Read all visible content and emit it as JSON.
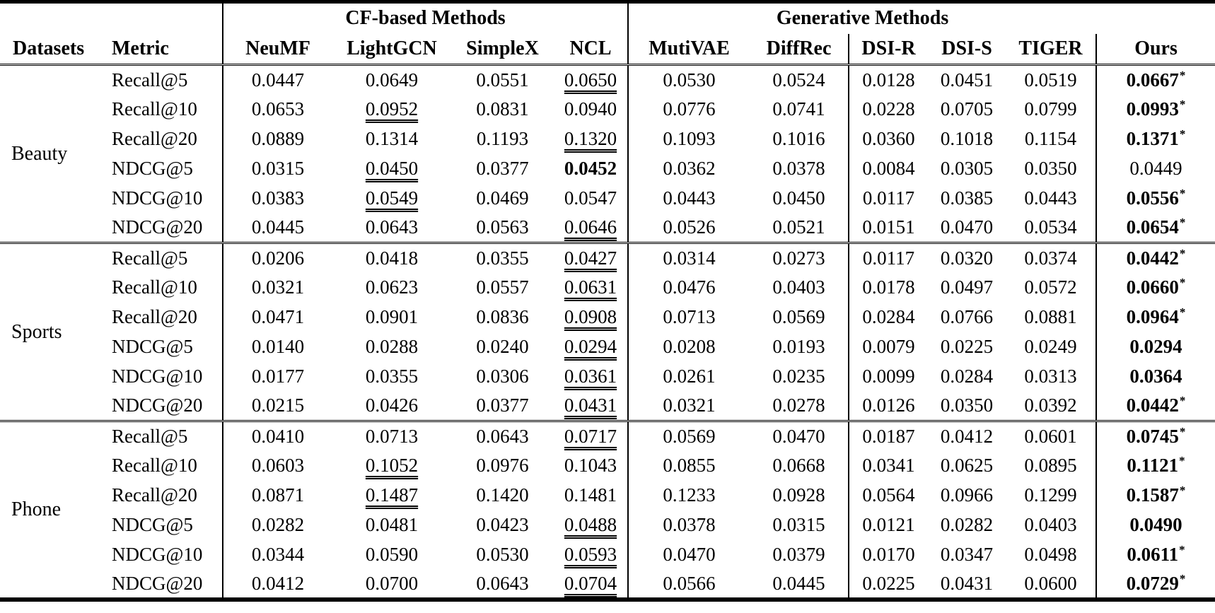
{
  "page": {
    "background": "#ffffff",
    "text_color": "#000000"
  },
  "table": {
    "datasets_label": "Datasets",
    "metric_label": "Metric",
    "groups": [
      "CF-based Methods",
      "Generative Methods"
    ],
    "methods": [
      "NeuMF",
      "LightGCN",
      "SimpleX",
      "NCL",
      "MutiVAE",
      "DiffRec",
      "DSI-R",
      "DSI-S",
      "TIGER",
      "Ours"
    ],
    "significance_marker": "*",
    "sections": [
      {
        "dataset": "Beauty",
        "rows": [
          {
            "metric": "Recall@5",
            "values": [
              "0.0447",
              "0.0649",
              "0.0551",
              "0.0650",
              "0.0530",
              "0.0524",
              "0.0128",
              "0.0451",
              "0.0519",
              "0.0667"
            ],
            "formats": [
              "",
              "",
              "",
              "u",
              "",
              "",
              "",
              "",
              "",
              "bs"
            ]
          },
          {
            "metric": "Recall@10",
            "values": [
              "0.0653",
              "0.0952",
              "0.0831",
              "0.0940",
              "0.0776",
              "0.0741",
              "0.0228",
              "0.0705",
              "0.0799",
              "0.0993"
            ],
            "formats": [
              "",
              "u",
              "",
              "",
              "",
              "",
              "",
              "",
              "",
              "bs"
            ]
          },
          {
            "metric": "Recall@20",
            "values": [
              "0.0889",
              "0.1314",
              "0.1193",
              "0.1320",
              "0.1093",
              "0.1016",
              "0.0360",
              "0.1018",
              "0.1154",
              "0.1371"
            ],
            "formats": [
              "",
              "",
              "",
              "u",
              "",
              "",
              "",
              "",
              "",
              "bs"
            ]
          },
          {
            "metric": "NDCG@5",
            "values": [
              "0.0315",
              "0.0450",
              "0.0377",
              "0.0452",
              "0.0362",
              "0.0378",
              "0.0084",
              "0.0305",
              "0.0350",
              "0.0449"
            ],
            "formats": [
              "",
              "u",
              "",
              "b",
              "",
              "",
              "",
              "",
              "",
              ""
            ]
          },
          {
            "metric": "NDCG@10",
            "values": [
              "0.0383",
              "0.0549",
              "0.0469",
              "0.0547",
              "0.0443",
              "0.0450",
              "0.0117",
              "0.0385",
              "0.0443",
              "0.0556"
            ],
            "formats": [
              "",
              "u",
              "",
              "",
              "",
              "",
              "",
              "",
              "",
              "bs"
            ]
          },
          {
            "metric": "NDCG@20",
            "values": [
              "0.0445",
              "0.0643",
              "0.0563",
              "0.0646",
              "0.0526",
              "0.0521",
              "0.0151",
              "0.0470",
              "0.0534",
              "0.0654"
            ],
            "formats": [
              "",
              "",
              "",
              "u",
              "",
              "",
              "",
              "",
              "",
              "bs"
            ]
          }
        ]
      },
      {
        "dataset": "Sports",
        "rows": [
          {
            "metric": "Recall@5",
            "values": [
              "0.0206",
              "0.0418",
              "0.0355",
              "0.0427",
              "0.0314",
              "0.0273",
              "0.0117",
              "0.0320",
              "0.0374",
              "0.0442"
            ],
            "formats": [
              "",
              "",
              "",
              "u",
              "",
              "",
              "",
              "",
              "",
              "bs"
            ]
          },
          {
            "metric": "Recall@10",
            "values": [
              "0.0321",
              "0.0623",
              "0.0557",
              "0.0631",
              "0.0476",
              "0.0403",
              "0.0178",
              "0.0497",
              "0.0572",
              "0.0660"
            ],
            "formats": [
              "",
              "",
              "",
              "u",
              "",
              "",
              "",
              "",
              "",
              "bs"
            ]
          },
          {
            "metric": "Recall@20",
            "values": [
              "0.0471",
              "0.0901",
              "0.0836",
              "0.0908",
              "0.0713",
              "0.0569",
              "0.0284",
              "0.0766",
              "0.0881",
              "0.0964"
            ],
            "formats": [
              "",
              "",
              "",
              "u",
              "",
              "",
              "",
              "",
              "",
              "bs"
            ]
          },
          {
            "metric": "NDCG@5",
            "values": [
              "0.0140",
              "0.0288",
              "0.0240",
              "0.0294",
              "0.0208",
              "0.0193",
              "0.0079",
              "0.0225",
              "0.0249",
              "0.0294"
            ],
            "formats": [
              "",
              "",
              "",
              "u",
              "",
              "",
              "",
              "",
              "",
              "b"
            ]
          },
          {
            "metric": "NDCG@10",
            "values": [
              "0.0177",
              "0.0355",
              "0.0306",
              "0.0361",
              "0.0261",
              "0.0235",
              "0.0099",
              "0.0284",
              "0.0313",
              "0.0364"
            ],
            "formats": [
              "",
              "",
              "",
              "u",
              "",
              "",
              "",
              "",
              "",
              "b"
            ]
          },
          {
            "metric": "NDCG@20",
            "values": [
              "0.0215",
              "0.0426",
              "0.0377",
              "0.0431",
              "0.0321",
              "0.0278",
              "0.0126",
              "0.0350",
              "0.0392",
              "0.0442"
            ],
            "formats": [
              "",
              "",
              "",
              "u",
              "",
              "",
              "",
              "",
              "",
              "bs"
            ]
          }
        ]
      },
      {
        "dataset": "Phone",
        "rows": [
          {
            "metric": "Recall@5",
            "values": [
              "0.0410",
              "0.0713",
              "0.0643",
              "0.0717",
              "0.0569",
              "0.0470",
              "0.0187",
              "0.0412",
              "0.0601",
              "0.0745"
            ],
            "formats": [
              "",
              "",
              "",
              "u",
              "",
              "",
              "",
              "",
              "",
              "bs"
            ]
          },
          {
            "metric": "Recall@10",
            "values": [
              "0.0603",
              "0.1052",
              "0.0976",
              "0.1043",
              "0.0855",
              "0.0668",
              "0.0341",
              "0.0625",
              "0.0895",
              "0.1121"
            ],
            "formats": [
              "",
              "u",
              "",
              "",
              "",
              "",
              "",
              "",
              "",
              "bs"
            ]
          },
          {
            "metric": "Recall@20",
            "values": [
              "0.0871",
              "0.1487",
              "0.1420",
              "0.1481",
              "0.1233",
              "0.0928",
              "0.0564",
              "0.0966",
              "0.1299",
              "0.1587"
            ],
            "formats": [
              "",
              "u",
              "",
              "",
              "",
              "",
              "",
              "",
              "",
              "bs"
            ]
          },
          {
            "metric": "NDCG@5",
            "values": [
              "0.0282",
              "0.0481",
              "0.0423",
              "0.0488",
              "0.0378",
              "0.0315",
              "0.0121",
              "0.0282",
              "0.0403",
              "0.0490"
            ],
            "formats": [
              "",
              "",
              "",
              "u",
              "",
              "",
              "",
              "",
              "",
              "b"
            ]
          },
          {
            "metric": "NDCG@10",
            "values": [
              "0.0344",
              "0.0590",
              "0.0530",
              "0.0593",
              "0.0470",
              "0.0379",
              "0.0170",
              "0.0347",
              "0.0498",
              "0.0611"
            ],
            "formats": [
              "",
              "",
              "",
              "u",
              "",
              "",
              "",
              "",
              "",
              "bs"
            ]
          },
          {
            "metric": "NDCG@20",
            "values": [
              "0.0412",
              "0.0700",
              "0.0643",
              "0.0704",
              "0.0566",
              "0.0445",
              "0.0225",
              "0.0431",
              "0.0600",
              "0.0729"
            ],
            "formats": [
              "",
              "",
              "",
              "u",
              "",
              "",
              "",
              "",
              "",
              "bs"
            ]
          }
        ]
      }
    ]
  }
}
